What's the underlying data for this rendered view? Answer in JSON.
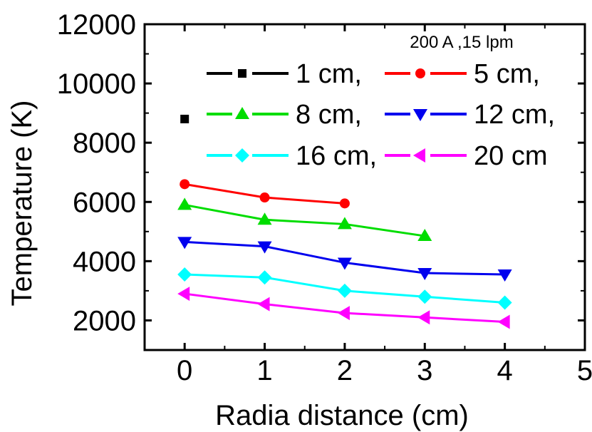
{
  "chart_data": {
    "type": "line",
    "title": "",
    "xlabel": "Radia distance (cm)",
    "ylabel": "Temperature (K)",
    "xlim": [
      -0.5,
      5
    ],
    "ylim": [
      1000,
      12000
    ],
    "xticks": [
      "0",
      "1",
      "2",
      "3",
      "4",
      "5"
    ],
    "yticks": [
      "2000",
      "4000",
      "6000",
      "8000",
      "10000",
      "12000"
    ],
    "legend_title": "200 A ,15 lpm",
    "legend_position": "top-right",
    "series": [
      {
        "name": "1 cm,",
        "color": "#000000",
        "marker": "square",
        "x": [],
        "y": []
      },
      {
        "name": "5 cm,",
        "color": "#ff0000",
        "marker": "circle",
        "x": [
          0,
          1,
          2
        ],
        "y": [
          6600,
          6150,
          5950
        ]
      },
      {
        "name": "8 cm,",
        "color": "#00dd00",
        "marker": "triangle-up",
        "x": [
          0,
          1,
          2,
          3
        ],
        "y": [
          5900,
          5400,
          5250,
          4850
        ]
      },
      {
        "name": "12 cm,",
        "color": "#0000ee",
        "marker": "triangle-down",
        "x": [
          0,
          1,
          2,
          3,
          4
        ],
        "y": [
          4650,
          4500,
          3950,
          3600,
          3550
        ]
      },
      {
        "name": "16 cm,",
        "color": "#00ffff",
        "marker": "diamond",
        "x": [
          0,
          1,
          2,
          3,
          4
        ],
        "y": [
          3550,
          3450,
          3000,
          2800,
          2600
        ]
      },
      {
        "name": "20 cm",
        "color": "#ff00ff",
        "marker": "triangle-left",
        "x": [
          0,
          1,
          2,
          3,
          4
        ],
        "y": [
          2900,
          2550,
          2250,
          2100,
          1950
        ]
      }
    ],
    "stray_markers": [
      {
        "shape": "square",
        "color": "#000000",
        "x": 0,
        "y": 8800
      }
    ]
  }
}
